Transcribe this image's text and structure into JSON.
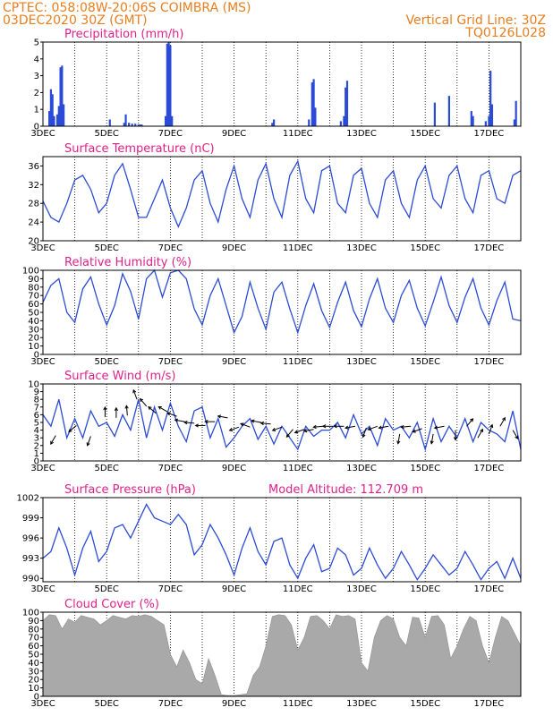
{
  "header": {
    "left_line1": "CPTEC:   058:08W-20:06S   COIMBRA (MS)",
    "left_line2": "03DEC2020 30Z (GMT)",
    "right_line1": "Vertical Grid Line: 30Z",
    "right_line2": "TQ0126L028"
  },
  "x_ticks": [
    "3DEC",
    "5DEC",
    "7DEC",
    "9DEC",
    "11DEC",
    "13DEC",
    "15DEC",
    "17DEC"
  ],
  "colors": {
    "line": "#2b4bd6",
    "bar": "#2b4bd6",
    "cloud": "#a9a9a9",
    "title": "#e0218a",
    "header": "#e87e1e"
  },
  "chart_data": [
    {
      "type": "bar",
      "title": "Precipitation (mm/h)",
      "ylim": [
        0,
        5
      ],
      "yticks": [
        0,
        1,
        2,
        3,
        4,
        5
      ],
      "x_range_days": [
        3,
        18
      ],
      "x": [
        3.2,
        3.25,
        3.3,
        3.35,
        3.45,
        3.5,
        3.55,
        3.6,
        3.65,
        5.1,
        5.55,
        5.6,
        5.7,
        5.8,
        5.9,
        6.0,
        6.05,
        6.1,
        6.85,
        6.9,
        6.95,
        7.0,
        7.05,
        10.2,
        10.25,
        11.35,
        11.45,
        11.5,
        11.55,
        12.35,
        12.45,
        12.5,
        12.55,
        15.3,
        15.75,
        16.45,
        16.5,
        16.9,
        17.0,
        17.05,
        17.1,
        17.8,
        17.85
      ],
      "values": [
        0.9,
        2.2,
        1.9,
        0.6,
        0.7,
        1.2,
        3.5,
        3.6,
        1.3,
        0.4,
        0.2,
        0.7,
        0.2,
        0.15,
        0.15,
        0.1,
        0.1,
        0.1,
        0.6,
        4.9,
        5.0,
        4.8,
        0.6,
        0.2,
        0.4,
        0.4,
        2.6,
        2.8,
        1.1,
        0.3,
        0.6,
        2.3,
        2.7,
        1.4,
        1.8,
        0.9,
        0.6,
        0.3,
        0.6,
        3.3,
        1.3,
        0.4,
        1.5
      ]
    },
    {
      "type": "line",
      "title": "Surface Temperature (nC)",
      "ylim": [
        20,
        38
      ],
      "yticks": [
        20,
        24,
        28,
        32,
        36
      ],
      "x_range_days": [
        3,
        18
      ],
      "x": [
        3.0,
        3.25,
        3.5,
        3.75,
        4.0,
        4.25,
        4.5,
        4.75,
        5.0,
        5.25,
        5.5,
        5.75,
        6.0,
        6.25,
        6.5,
        6.75,
        7.0,
        7.25,
        7.5,
        7.75,
        8.0,
        8.25,
        8.5,
        8.75,
        9.0,
        9.25,
        9.5,
        9.75,
        10.0,
        10.25,
        10.5,
        10.75,
        11.0,
        11.25,
        11.5,
        11.75,
        12.0,
        12.25,
        12.5,
        12.75,
        13.0,
        13.25,
        13.5,
        13.75,
        14.0,
        14.25,
        14.5,
        14.75,
        15.0,
        15.25,
        15.5,
        15.75,
        16.0,
        16.25,
        16.5,
        16.75,
        17.0,
        17.25,
        17.5,
        17.75,
        18.0
      ],
      "values": [
        28.5,
        25,
        24,
        28,
        33,
        34,
        31,
        26,
        28,
        34,
        36.5,
        31,
        25,
        25,
        29,
        33,
        27,
        23,
        27,
        33,
        35,
        28,
        24,
        31,
        36,
        29,
        25,
        33,
        36.5,
        29,
        25,
        34,
        37,
        29,
        26,
        35,
        36,
        28,
        26,
        34,
        35.5,
        28,
        25,
        33,
        35,
        28,
        25,
        33,
        36,
        29,
        27,
        34,
        36,
        29,
        26,
        34,
        35,
        29,
        28,
        34,
        35
      ]
    },
    {
      "type": "line",
      "title": "Relative Humidity (%)",
      "ylim": [
        0,
        100
      ],
      "yticks": [
        0,
        10,
        20,
        30,
        40,
        50,
        60,
        70,
        80,
        90,
        100
      ],
      "x_range_days": [
        3,
        18
      ],
      "x": [
        3.0,
        3.25,
        3.5,
        3.75,
        4.0,
        4.25,
        4.5,
        4.75,
        5.0,
        5.25,
        5.5,
        5.75,
        6.0,
        6.25,
        6.5,
        6.75,
        7.0,
        7.25,
        7.5,
        7.75,
        8.0,
        8.25,
        8.5,
        8.75,
        9.0,
        9.25,
        9.5,
        9.75,
        10.0,
        10.25,
        10.5,
        10.75,
        11.0,
        11.25,
        11.5,
        11.75,
        12.0,
        12.25,
        12.5,
        12.75,
        13.0,
        13.25,
        13.5,
        13.75,
        14.0,
        14.25,
        14.5,
        14.75,
        15.0,
        15.25,
        15.5,
        15.75,
        16.0,
        16.25,
        16.5,
        16.75,
        17.0,
        17.25,
        17.5,
        17.75,
        18.0
      ],
      "values": [
        62,
        82,
        90,
        50,
        38,
        78,
        92,
        60,
        35,
        58,
        96,
        75,
        42,
        90,
        100,
        68,
        97,
        100,
        90,
        54,
        35,
        70,
        90,
        58,
        26,
        45,
        86,
        55,
        30,
        74,
        86,
        54,
        26,
        58,
        84,
        52,
        32,
        62,
        86,
        52,
        33,
        66,
        90,
        55,
        38,
        70,
        88,
        55,
        34,
        62,
        92,
        58,
        38,
        68,
        90,
        55,
        35,
        64,
        86,
        42,
        40
      ]
    },
    {
      "type": "line",
      "title": "Surface Wind (m/s)",
      "ylim": [
        0,
        10
      ],
      "yticks": [
        0,
        1,
        2,
        3,
        4,
        5,
        6,
        7,
        8,
        9,
        10
      ],
      "x_range_days": [
        3,
        18
      ],
      "x": [
        3.0,
        3.25,
        3.5,
        3.75,
        4.0,
        4.25,
        4.5,
        4.75,
        5.0,
        5.25,
        5.5,
        5.75,
        6.0,
        6.25,
        6.5,
        6.75,
        7.0,
        7.25,
        7.5,
        7.75,
        8.0,
        8.25,
        8.5,
        8.75,
        9.0,
        9.25,
        9.5,
        9.75,
        10.0,
        10.25,
        10.5,
        10.75,
        11.0,
        11.25,
        11.5,
        11.75,
        12.0,
        12.25,
        12.5,
        12.75,
        13.0,
        13.25,
        13.5,
        13.75,
        14.0,
        14.25,
        14.5,
        14.75,
        15.0,
        15.25,
        15.5,
        15.75,
        16.0,
        16.25,
        16.5,
        16.75,
        17.0,
        17.25,
        17.5,
        17.75,
        18.0
      ],
      "values": [
        6,
        4.5,
        8,
        3,
        5.5,
        3,
        6.5,
        4.5,
        5,
        3.2,
        6,
        4,
        8,
        3,
        7,
        4,
        7.5,
        4.5,
        2.5,
        6.5,
        7,
        3,
        5.5,
        1.8,
        3,
        4.5,
        5.5,
        2.8,
        4.5,
        2.2,
        4.5,
        3,
        1.5,
        4.5,
        3.2,
        4,
        4,
        5,
        3,
        6,
        3.5,
        4.5,
        2,
        5.5,
        4,
        4.5,
        3,
        5,
        1.5,
        5.5,
        2.5,
        4.5,
        3,
        5.5,
        2.5,
        5,
        4,
        3.5,
        2.5,
        6.5,
        1.5
      ],
      "arrows_x": [
        3.4,
        4.05,
        4.5,
        4.95,
        5.3,
        5.65,
        5.95,
        6.25,
        6.55,
        6.9,
        7.2,
        7.45,
        7.75,
        8.1,
        8.4,
        8.8,
        9.15,
        9.5,
        9.85,
        10.15,
        10.5,
        10.85,
        11.2,
        11.5,
        11.8,
        12.1,
        12.45,
        12.8,
        13.15,
        13.5,
        13.85,
        14.2,
        14.55,
        14.9,
        15.25,
        15.6,
        15.95,
        16.3,
        16.65,
        17.0,
        17.35,
        17.75
      ],
      "arrows_y": [
        3.3,
        4.6,
        3.2,
        5.7,
        5.6,
        5.9,
        8,
        7.1,
        6.2,
        6.4,
        5.8,
        5.1,
        4.9,
        4.6,
        5.1,
        5.6,
        4.4,
        4.4,
        5,
        4.8,
        4.4,
        4.1,
        4.1,
        4.1,
        4.5,
        4.5,
        4.5,
        4.5,
        4.3,
        4.5,
        4.5,
        3.5,
        4.5,
        4.2,
        3.5,
        4.5,
        4,
        4.5,
        3,
        3.5,
        4.5,
        4
      ],
      "arrows_dir_deg": [
        240,
        220,
        250,
        90,
        90,
        95,
        110,
        130,
        140,
        150,
        160,
        170,
        175,
        180,
        180,
        170,
        200,
        160,
        170,
        175,
        200,
        230,
        200,
        190,
        185,
        180,
        180,
        190,
        250,
        200,
        190,
        260,
        185,
        200,
        260,
        190,
        270,
        50,
        60,
        70,
        60,
        300
      ]
    },
    {
      "type": "line",
      "title": "Surface Pressure (hPa)",
      "annotation": "Model Altitude: 112.709  m",
      "ylim": [
        989.5,
        1002
      ],
      "yticks": [
        990,
        993,
        996,
        999,
        1002
      ],
      "x_range_days": [
        3,
        18
      ],
      "x": [
        3.0,
        3.25,
        3.5,
        3.75,
        4.0,
        4.25,
        4.5,
        4.75,
        5.0,
        5.25,
        5.5,
        5.75,
        6.0,
        6.25,
        6.5,
        6.75,
        7.0,
        7.25,
        7.5,
        7.75,
        8.0,
        8.25,
        8.5,
        8.75,
        9.0,
        9.25,
        9.5,
        9.75,
        10.0,
        10.25,
        10.5,
        10.75,
        11.0,
        11.25,
        11.5,
        11.75,
        12.0,
        12.25,
        12.5,
        12.75,
        13.0,
        13.25,
        13.5,
        13.75,
        14.0,
        14.25,
        14.5,
        14.75,
        15.0,
        15.25,
        15.5,
        15.75,
        16.0,
        16.25,
        16.5,
        16.75,
        17.0,
        17.25,
        17.5,
        17.75,
        18.0
      ],
      "values": [
        993,
        994,
        997.5,
        994.5,
        990.5,
        994.5,
        997,
        992.5,
        994,
        997.5,
        998,
        996,
        998.5,
        1001,
        999,
        998.5,
        998,
        999.5,
        998,
        993.5,
        995,
        998,
        996,
        993.5,
        990.5,
        994.5,
        997.5,
        994,
        992,
        995.5,
        996,
        992,
        990,
        993,
        995,
        991,
        991.5,
        994.5,
        993.5,
        990.5,
        991.5,
        994.5,
        992,
        990,
        991.5,
        994,
        992,
        989.8,
        991.5,
        993.5,
        992,
        990.5,
        991.5,
        994,
        992,
        989.8,
        991.5,
        992.5,
        990,
        993,
        990
      ]
    },
    {
      "type": "area",
      "title": "Cloud Cover (%)",
      "ylim": [
        0,
        100
      ],
      "yticks": [
        0,
        10,
        20,
        30,
        40,
        50,
        60,
        70,
        80,
        90,
        100
      ],
      "x_range_days": [
        3,
        18
      ],
      "x": [
        3.0,
        3.2,
        3.4,
        3.6,
        3.8,
        4.0,
        4.2,
        4.4,
        4.6,
        4.8,
        5.0,
        5.2,
        5.4,
        5.6,
        5.8,
        6.0,
        6.2,
        6.4,
        6.6,
        6.8,
        7.0,
        7.2,
        7.4,
        7.6,
        7.8,
        8.0,
        8.2,
        8.4,
        8.6,
        8.8,
        9.0,
        9.2,
        9.4,
        9.6,
        9.8,
        10.0,
        10.2,
        10.4,
        10.6,
        10.8,
        11.0,
        11.2,
        11.4,
        11.6,
        11.8,
        12.0,
        12.2,
        12.4,
        12.6,
        12.8,
        13.0,
        13.2,
        13.4,
        13.6,
        13.8,
        14.0,
        14.2,
        14.4,
        14.6,
        14.8,
        15.0,
        15.2,
        15.4,
        15.6,
        15.8,
        16.0,
        16.2,
        16.4,
        16.6,
        16.8,
        17.0,
        17.2,
        17.4,
        17.6,
        17.8,
        18.0
      ],
      "values": [
        90,
        97,
        96,
        80,
        92,
        88,
        96,
        94,
        92,
        85,
        90,
        96,
        94,
        92,
        96,
        95,
        97,
        95,
        90,
        85,
        50,
        35,
        55,
        40,
        20,
        15,
        45,
        25,
        2,
        1,
        1,
        2,
        3,
        25,
        35,
        60,
        95,
        97,
        96,
        85,
        55,
        70,
        95,
        96,
        90,
        80,
        97,
        95,
        96,
        92,
        40,
        30,
        70,
        90,
        96,
        92,
        70,
        60,
        94,
        93,
        70,
        95,
        96,
        85,
        45,
        60,
        80,
        95,
        90,
        60,
        40,
        70,
        95,
        90,
        75,
        60
      ]
    }
  ]
}
